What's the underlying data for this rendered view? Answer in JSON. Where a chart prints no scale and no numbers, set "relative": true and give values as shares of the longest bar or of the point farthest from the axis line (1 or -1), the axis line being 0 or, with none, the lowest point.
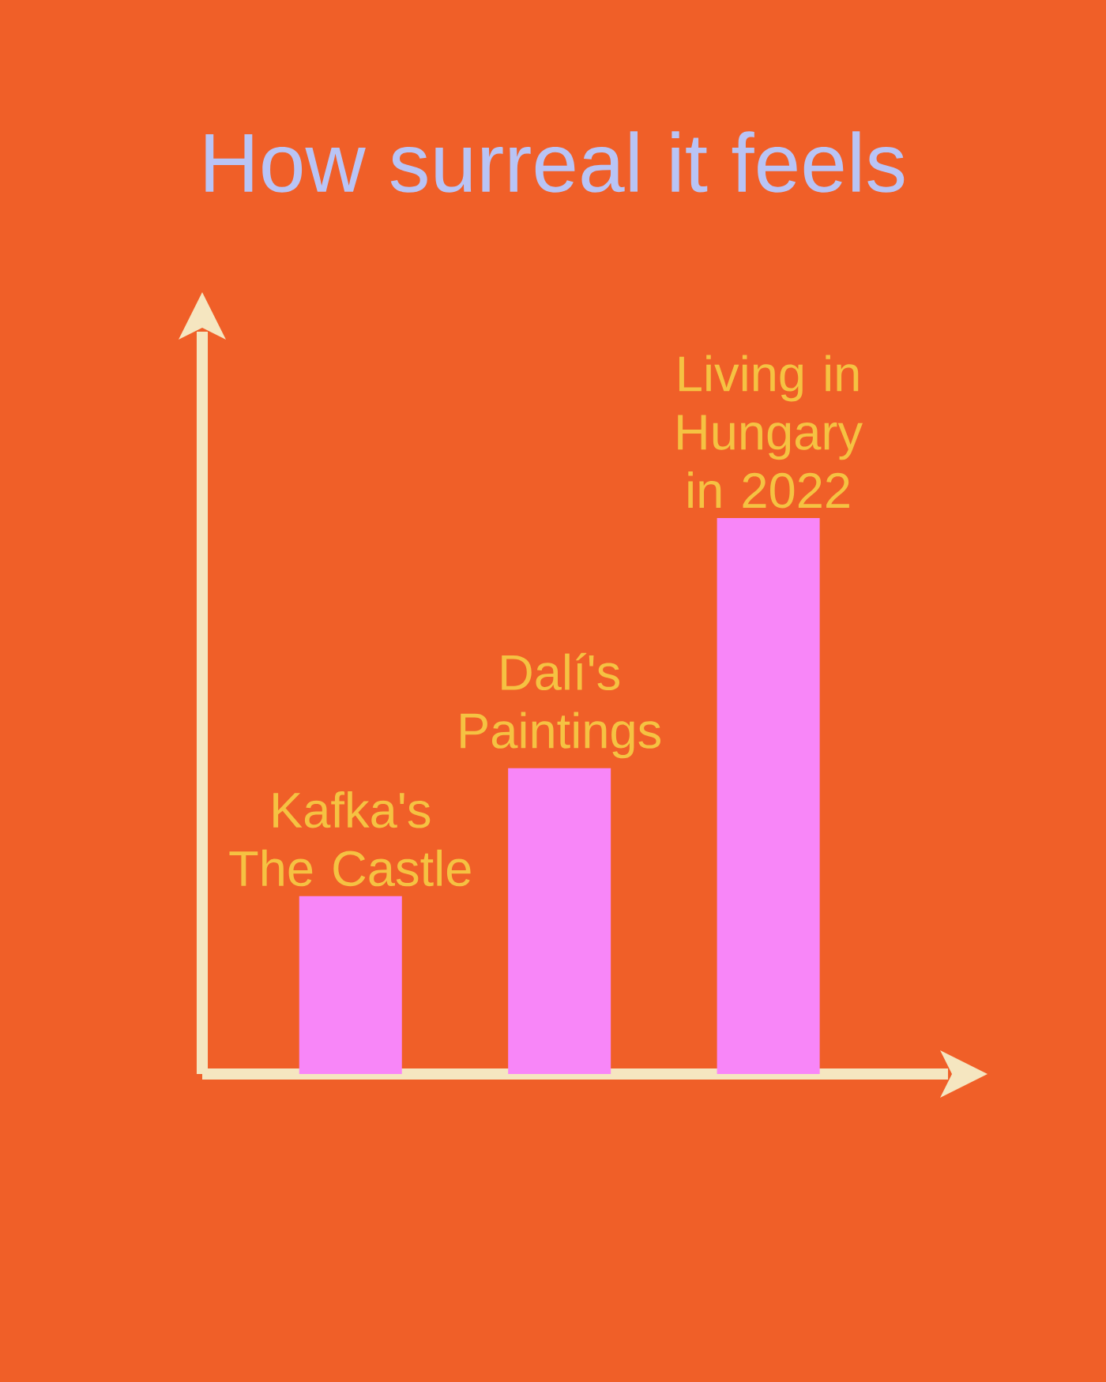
{
  "chart_data": {
    "type": "bar",
    "title": "How surreal it feels",
    "categories": [
      "Kafka's The Castle",
      "Dalí's Paintings",
      "Living in Hungary in 2022"
    ],
    "values": [
      0.32,
      0.55,
      1
    ],
    "color": "#f886f8",
    "relative": true
  }
}
